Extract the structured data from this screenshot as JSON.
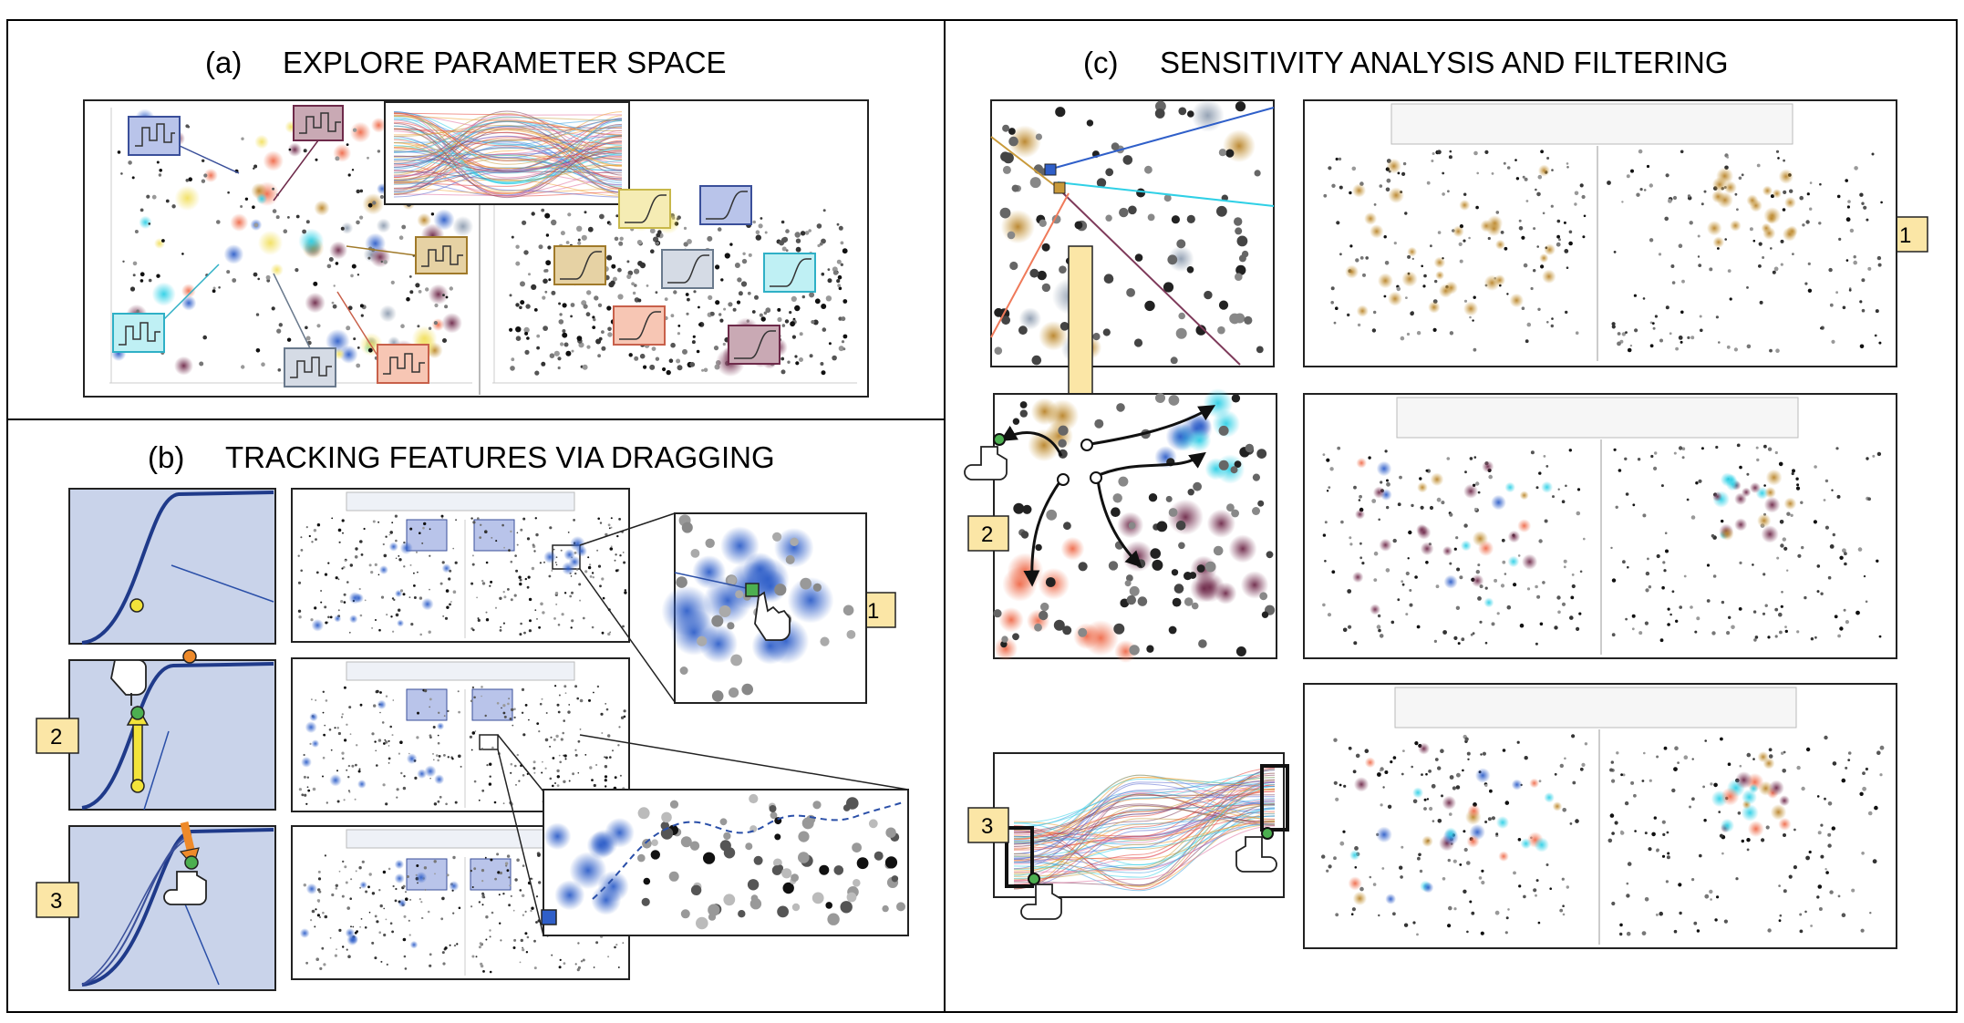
{
  "panels": {
    "a": {
      "label": "(a)",
      "title": "EXPLORE PARAMETER SPACE"
    },
    "b": {
      "label": "(b)",
      "title": "TRACKING FEATURES VIA DRAGGING"
    },
    "c": {
      "label": "(c)",
      "title": "SENSITIVITY ANALYSIS AND FILTERING"
    }
  },
  "badges": {
    "b1": "1",
    "b2": "2",
    "b3": "3",
    "c1": "1",
    "c2": "2",
    "c3": "3"
  },
  "colors": {
    "cyan": "#2fd0e6",
    "blue": "#2f5fc9",
    "gold": "#c99a3a",
    "salmon": "#ef7a5a",
    "plum": "#7e3a5a",
    "slate": "#8a99ad",
    "yellow": "#f2e060",
    "badge_fill": "#fbe6a6",
    "panel_bg": "#c9d3ea"
  }
}
